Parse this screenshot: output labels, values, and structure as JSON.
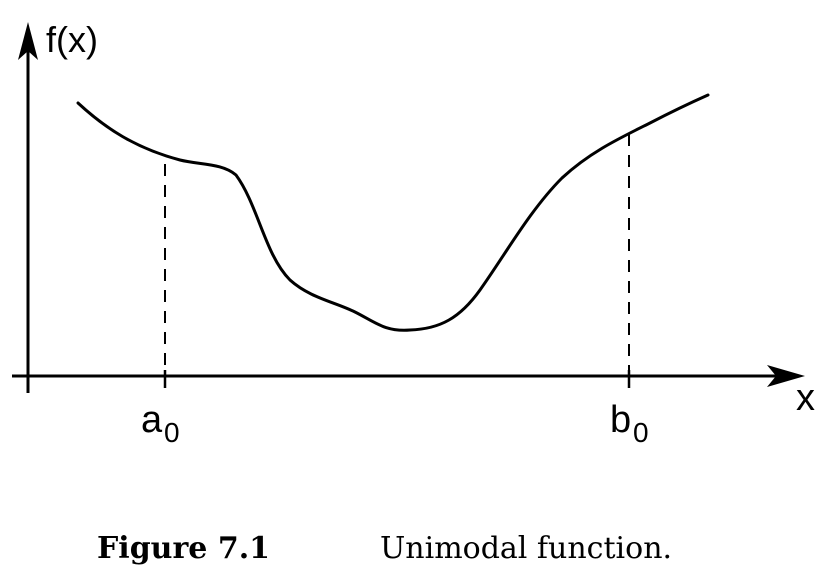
{
  "diagram": {
    "y_axis_label": "f(x)",
    "x_axis_label": "x",
    "left_bound": {
      "base": "a",
      "subscript": "0"
    },
    "right_bound": {
      "base": "b",
      "subscript": "0"
    }
  },
  "caption": {
    "number": "Figure 7.1",
    "text": "Unimodal function."
  }
}
